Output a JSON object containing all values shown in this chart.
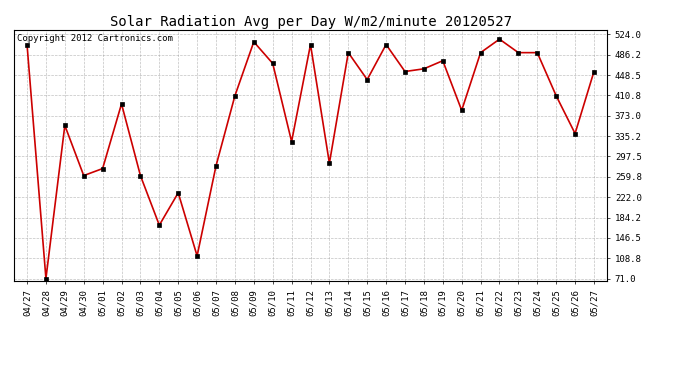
{
  "title": "Solar Radiation Avg per Day W/m2/minute 20120527",
  "copyright_text": "Copyright 2012 Cartronics.com",
  "dates": [
    "04/27",
    "04/28",
    "04/29",
    "04/30",
    "05/01",
    "05/02",
    "05/03",
    "05/04",
    "05/05",
    "05/06",
    "05/07",
    "05/08",
    "05/09",
    "05/10",
    "05/11",
    "05/12",
    "05/13",
    "05/14",
    "05/15",
    "05/16",
    "05/17",
    "05/18",
    "05/19",
    "05/20",
    "05/21",
    "05/22",
    "05/23",
    "05/24",
    "05/25",
    "05/26",
    "05/27"
  ],
  "values": [
    505,
    71,
    355,
    262,
    275,
    395,
    262,
    170,
    230,
    113,
    280,
    410,
    510,
    470,
    325,
    505,
    285,
    490,
    440,
    505,
    455,
    460,
    475,
    383,
    490,
    515,
    490,
    490,
    410,
    340,
    455
  ],
  "line_color": "#cc0000",
  "marker_color": "#000000",
  "background_color": "#ffffff",
  "grid_color": "#999999",
  "ymin": 71.0,
  "ymax": 524.0,
  "yticks": [
    71.0,
    108.8,
    146.5,
    184.2,
    222.0,
    259.8,
    297.5,
    335.2,
    373.0,
    410.8,
    448.5,
    486.2,
    524.0
  ],
  "title_fontsize": 10,
  "copyright_fontsize": 6.5,
  "tick_fontsize": 6.5
}
